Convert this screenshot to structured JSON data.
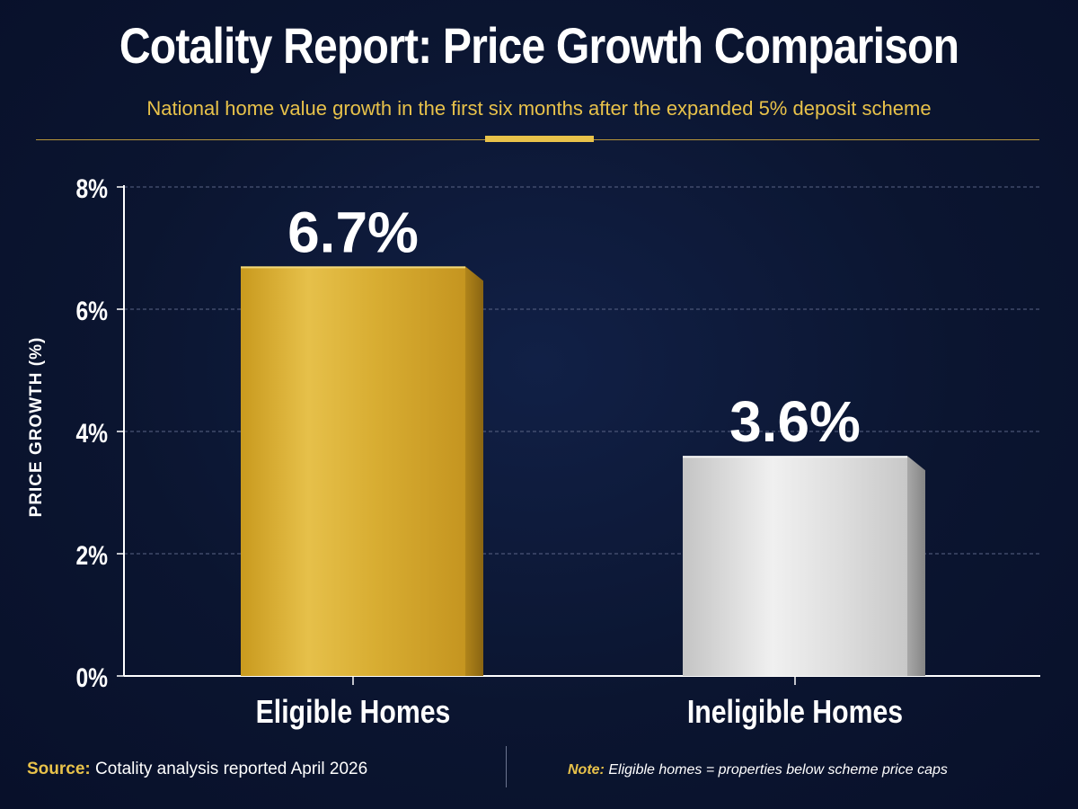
{
  "header": {
    "title": "Cotality Report: Price Growth Comparison",
    "subtitle": "National home value growth in the first six months after the expanded 5% deposit scheme"
  },
  "chart_data": {
    "type": "bar",
    "categories": [
      "Eligible Homes",
      "Ineligible Homes"
    ],
    "values": [
      6.7,
      3.6
    ],
    "value_labels": [
      "6.7%",
      "3.6%"
    ],
    "ylabel": "PRICE GROWTH (%)",
    "ylim": [
      0,
      8
    ],
    "yticks": [
      0,
      2,
      4,
      6,
      8
    ],
    "ytick_labels": [
      "0%",
      "2%",
      "4%",
      "6%",
      "8%"
    ],
    "grid": true,
    "bar_colors": [
      "#d4a82a",
      "#d8d8d8"
    ]
  },
  "footer": {
    "source_label": "Source:",
    "source_text": " Cotality analysis reported April 2026",
    "note_label": "Note:",
    "note_text": " Eligible homes = properties below scheme price caps"
  },
  "colors": {
    "background": "#0b1530",
    "accent": "#e8c24a"
  }
}
